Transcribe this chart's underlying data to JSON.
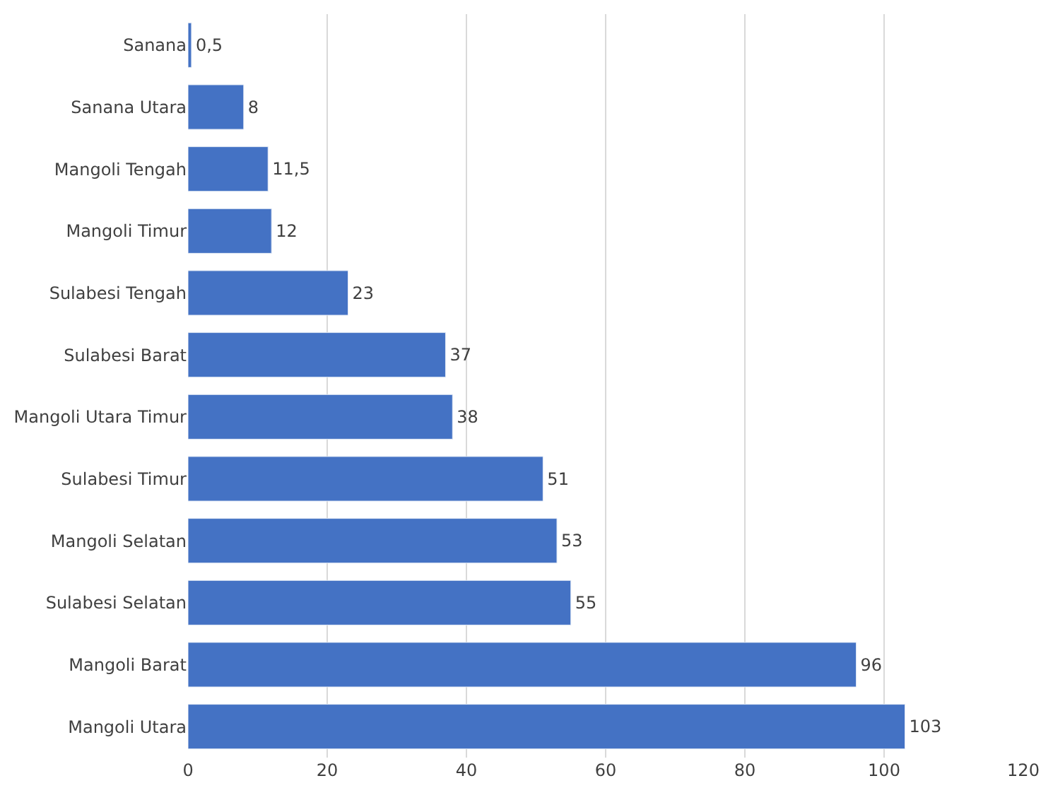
{
  "chart_data": {
    "type": "bar",
    "orientation": "horizontal",
    "categories": [
      "Sanana",
      "Sanana Utara",
      "Mangoli Tengah",
      "Mangoli Timur",
      "Sulabesi Tengah",
      "Sulabesi Barat",
      "Mangoli Utara Timur",
      "Sulabesi Timur",
      "Mangoli Selatan",
      "Sulabesi Selatan",
      "Mangoli Barat",
      "Mangoli Utara"
    ],
    "values": [
      0.5,
      8,
      11.5,
      12,
      23,
      37,
      38,
      51,
      53,
      55,
      96,
      103
    ],
    "value_labels": [
      "0,5",
      "8",
      "11,5",
      "12",
      "23",
      "37",
      "38",
      "51",
      "53",
      "55",
      "96",
      "103"
    ],
    "color": "#4472c4",
    "xlim": [
      0,
      120
    ],
    "xticks": [
      0,
      20,
      40,
      60,
      80,
      100,
      120
    ],
    "grid": "x"
  }
}
